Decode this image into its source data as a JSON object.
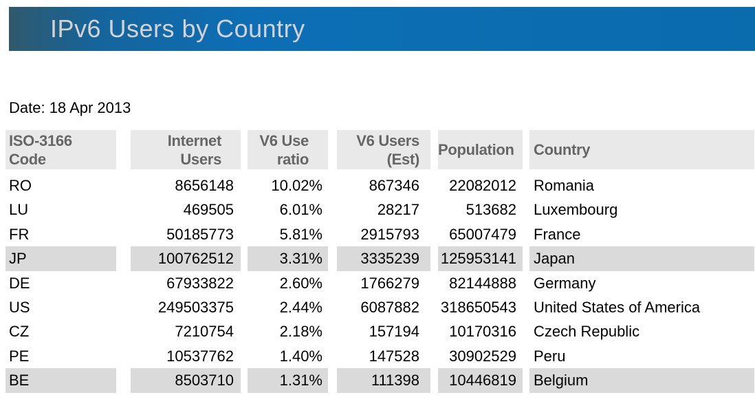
{
  "banner": {
    "title": "IPv6 Users by Country"
  },
  "date_line": "Date: 18 Apr 2013",
  "colors": {
    "banner_gradient_left": "#30596d",
    "banner_blue": "#0a6cad",
    "banner_title_text": "#d3d3d3",
    "header_cell_bg": "#e9e9e9",
    "header_text": "#666666",
    "highlight_row_bg": "#dadada",
    "data_text": "#000000"
  },
  "table": {
    "headers": {
      "code": "ISO-3166\nCode",
      "internet_users": "Internet\nUsers",
      "ratio": "V6 Use\nratio",
      "v6_users": "V6 Users\n(Est)",
      "population": "Population",
      "country": "Country"
    },
    "rows": [
      {
        "code": "RO",
        "internet_users": "8656148",
        "ratio": "10.02%",
        "v6_users": "867346",
        "population": "22082012",
        "country": "Romania",
        "highlighted": false
      },
      {
        "code": "LU",
        "internet_users": "469505",
        "ratio": "6.01%",
        "v6_users": "28217",
        "population": "513682",
        "country": "Luxembourg",
        "highlighted": false
      },
      {
        "code": "FR",
        "internet_users": "50185773",
        "ratio": "5.81%",
        "v6_users": "2915793",
        "population": "65007479",
        "country": "France",
        "highlighted": false
      },
      {
        "code": "JP",
        "internet_users": "100762512",
        "ratio": "3.31%",
        "v6_users": "3335239",
        "population": "125953141",
        "country": "Japan",
        "highlighted": true
      },
      {
        "code": "DE",
        "internet_users": "67933822",
        "ratio": "2.60%",
        "v6_users": "1766279",
        "population": "82144888",
        "country": "Germany",
        "highlighted": false
      },
      {
        "code": "US",
        "internet_users": "249503375",
        "ratio": "2.44%",
        "v6_users": "6087882",
        "population": "318650543",
        "country": "United States of America",
        "highlighted": false
      },
      {
        "code": "CZ",
        "internet_users": "7210754",
        "ratio": "2.18%",
        "v6_users": "157194",
        "population": "10170316",
        "country": "Czech Republic",
        "highlighted": false
      },
      {
        "code": "PE",
        "internet_users": "10537762",
        "ratio": "1.40%",
        "v6_users": "147528",
        "population": "30902529",
        "country": "Peru",
        "highlighted": false
      },
      {
        "code": "BE",
        "internet_users": "8503710",
        "ratio": "1.31%",
        "v6_users": "111398",
        "population": "10446819",
        "country": "Belgium",
        "highlighted": true
      }
    ]
  },
  "chart_data": {
    "type": "table",
    "title": "IPv6 Users by Country",
    "date": "18 Apr 2013",
    "columns": [
      "ISO-3166 Code",
      "Internet Users",
      "V6 Use ratio",
      "V6 Users (Est)",
      "Population",
      "Country"
    ],
    "rows": [
      [
        "RO",
        8656148,
        "10.02%",
        867346,
        22082012,
        "Romania"
      ],
      [
        "LU",
        469505,
        "6.01%",
        28217,
        513682,
        "Luxembourg"
      ],
      [
        "FR",
        50185773,
        "5.81%",
        2915793,
        65007479,
        "France"
      ],
      [
        "JP",
        100762512,
        "3.31%",
        3335239,
        125953141,
        "Japan"
      ],
      [
        "DE",
        67933822,
        "2.60%",
        1766279,
        82144888,
        "Germany"
      ],
      [
        "US",
        249503375,
        "2.44%",
        6087882,
        318650543,
        "United States of America"
      ],
      [
        "CZ",
        7210754,
        "2.18%",
        157194,
        10170316,
        "Czech Republic"
      ],
      [
        "PE",
        10537762,
        "1.40%",
        147528,
        30902529,
        "Peru"
      ],
      [
        "BE",
        8503710,
        "1.31%",
        111398,
        10446819,
        "Belgium"
      ]
    ],
    "highlighted_rows": [
      "JP",
      "BE"
    ],
    "layout_hints": {
      "column_alignment": [
        "left",
        "right",
        "right",
        "right",
        "right",
        "left"
      ],
      "grid": false,
      "column_gutters": true
    }
  }
}
